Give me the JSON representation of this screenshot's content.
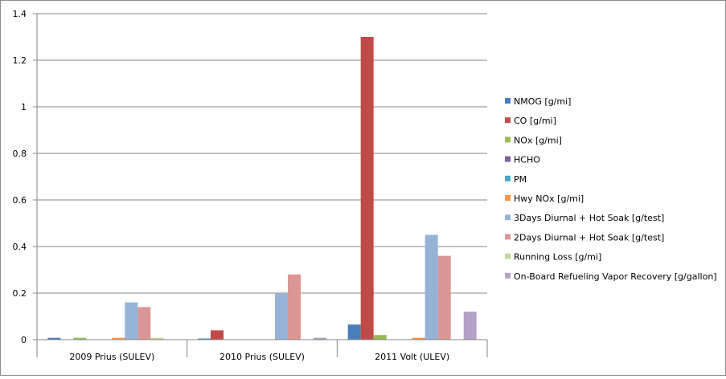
{
  "chart_data": {
    "type": "bar",
    "categories": [
      "2009 Prius (SULEV)",
      "2010 Prius (SULEV)",
      "2011 Volt (ULEV)"
    ],
    "ylim": [
      0,
      1.4
    ],
    "yticks": [
      "0",
      "0.2",
      "0.4",
      "0.6",
      "0.8",
      "1",
      "1.2",
      "1.4"
    ],
    "grid": true,
    "legend_position": "right",
    "series": [
      {
        "name": "NMOG [g/mi]",
        "color": "#4a7ebb",
        "values": [
          0.008,
          0.005,
          0.065
        ]
      },
      {
        "name": "CO [g/mi]",
        "color": "#be4b48",
        "values": [
          0,
          0.04,
          1.3
        ]
      },
      {
        "name": "NOx [g/mi]",
        "color": "#98b954",
        "values": [
          0.008,
          0,
          0.02
        ]
      },
      {
        "name": "HCHO",
        "color": "#7d60a0",
        "values": [
          0,
          0,
          0
        ]
      },
      {
        "name": "PM",
        "color": "#46aac4",
        "values": [
          0,
          0,
          0
        ]
      },
      {
        "name": "Hwy NOx [g/mi]",
        "color": "#f79646",
        "values": [
          0.008,
          0,
          0.008
        ]
      },
      {
        "name": "3Days Diurnal + Hot Soak [g/test]",
        "color": "#95b3d7",
        "values": [
          0.16,
          0.2,
          0.45
        ]
      },
      {
        "name": "2Days Diurnal + Hot Soak [g/test]",
        "color": "#da9694",
        "values": [
          0.14,
          0.28,
          0.36
        ]
      },
      {
        "name": "Running Loss [g/mi]",
        "color": "#c3d69b",
        "values": [
          0.008,
          0,
          0
        ]
      },
      {
        "name": "On-Board Refueling Vapor Recovery [g/gallon]",
        "color": "#b3a2c7",
        "values": [
          0,
          0.008,
          0.12
        ]
      }
    ]
  }
}
